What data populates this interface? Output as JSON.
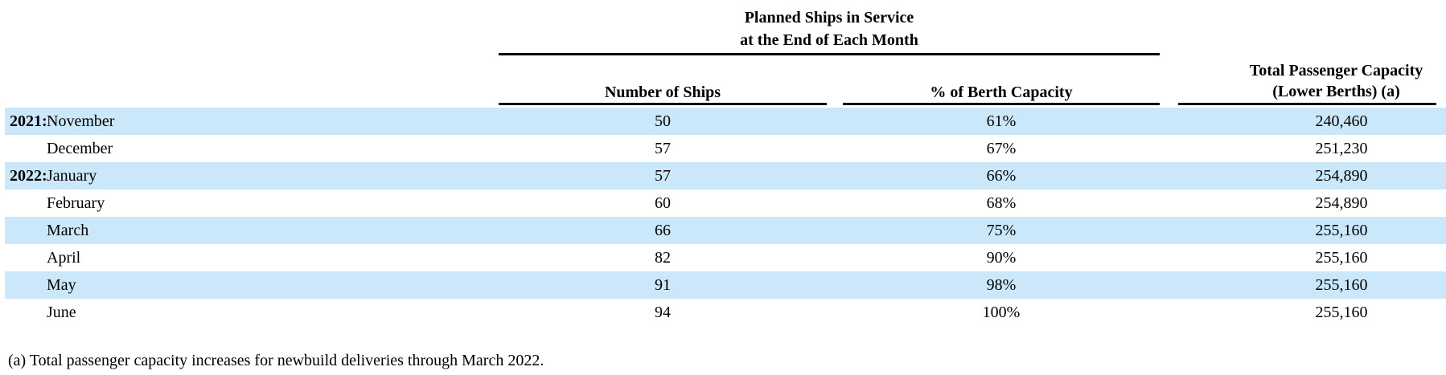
{
  "table": {
    "span_header": {
      "line1": "Planned Ships in Service",
      "line2": "at the End of Each Month"
    },
    "columns": {
      "ships": "Number of Ships",
      "berth": "% of Berth Capacity",
      "capacity_line1": "Total Passenger Capacity",
      "capacity_line2": "(Lower Berths) (a)"
    },
    "rows": [
      {
        "year": "2021:",
        "month": "November",
        "ships": "50",
        "berth": "61%",
        "capacity": "240,460"
      },
      {
        "year": "",
        "month": "December",
        "ships": "57",
        "berth": "67%",
        "capacity": "251,230"
      },
      {
        "year": "2022:",
        "month": "January",
        "ships": "57",
        "berth": "66%",
        "capacity": "254,890"
      },
      {
        "year": "",
        "month": "February",
        "ships": "60",
        "berth": "68%",
        "capacity": "254,890"
      },
      {
        "year": "",
        "month": "March",
        "ships": "66",
        "berth": "75%",
        "capacity": "255,160"
      },
      {
        "year": "",
        "month": "April",
        "ships": "82",
        "berth": "90%",
        "capacity": "255,160"
      },
      {
        "year": "",
        "month": "May",
        "ships": "91",
        "berth": "98%",
        "capacity": "255,160"
      },
      {
        "year": "",
        "month": "June",
        "ships": "94",
        "berth": "100%",
        "capacity": "255,160"
      }
    ]
  },
  "footnote": "(a) Total passenger capacity increases for newbuild deliveries through March 2022.",
  "colors": {
    "row_highlight": "#cbe8fa",
    "rule": "#000000",
    "text": "#000000"
  }
}
